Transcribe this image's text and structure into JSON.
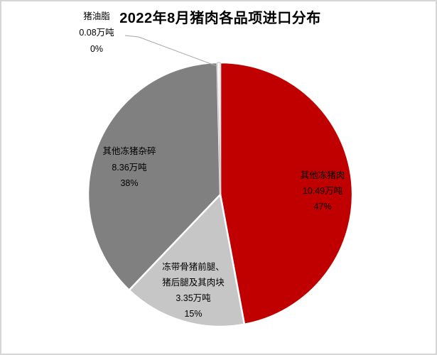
{
  "page": {
    "title": "2022年8月猪肉各品项进口分布"
  },
  "chart_data": {
    "type": "pie",
    "title": "2022年8月猪肉各品项进口分布",
    "unit": "万吨",
    "start_angle_deg": 0,
    "direction": "clockwise",
    "legend": "none",
    "slices": [
      {
        "name": "其他冻猪肉",
        "value": 10.49,
        "percent": "47%",
        "color": "#C00000"
      },
      {
        "name": "冻带骨猪前腿、猪后腿及其肉块",
        "value": 3.35,
        "percent": "15%",
        "color": "#C6C6C6"
      },
      {
        "name": "其他冻猪杂碎",
        "value": 8.36,
        "percent": "38%",
        "color": "#808080"
      },
      {
        "name": "猪油脂",
        "value": 0.08,
        "percent": "0%",
        "color": "#FFFFFF",
        "stroke": "#BFBFBF"
      }
    ]
  },
  "labels": {
    "red": [
      "其他冻猪肉",
      "10.49万吨",
      "47%"
    ],
    "light": [
      "冻带骨猪前腿、",
      "猪后腿及其肉块",
      "3.35万吨",
      "15%"
    ],
    "dark": [
      "其他冻猪杂碎",
      "8.36万吨",
      "38%"
    ],
    "callout": [
      "猪油脂",
      "0.08万吨",
      "0%"
    ]
  },
  "colors": {
    "accent_red": "#C00000",
    "gray_dark": "#808080",
    "gray_light": "#C6C6C6",
    "leader_line": "#A6A6A6",
    "panel_border": "#D6D6D6",
    "text": "#000000"
  }
}
